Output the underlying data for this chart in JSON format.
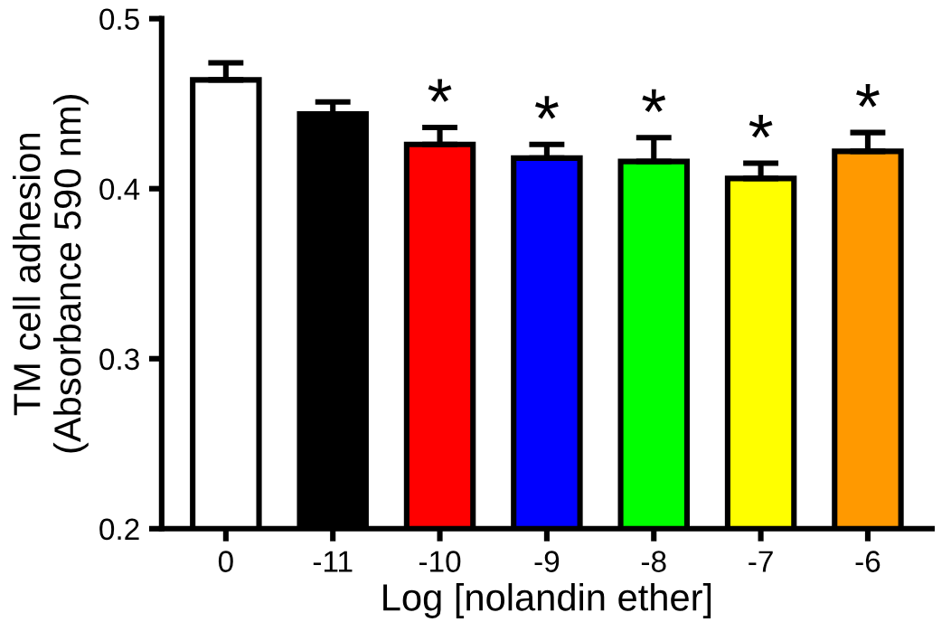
{
  "chart_data": {
    "type": "bar",
    "xlabel": "Log [nolandin ether]",
    "ylabel": "TM cell adhesion\n(Absorbance 590 nm)",
    "categories": [
      "0",
      "-11",
      "-10",
      "-9",
      "-8",
      "-7",
      "-6"
    ],
    "values": [
      0.464,
      0.444,
      0.426,
      0.418,
      0.416,
      0.406,
      0.422
    ],
    "colors": [
      "#ffffff",
      "#000000",
      "#ff0000",
      "#0000ff",
      "#00ff00",
      "#ffff00",
      "#ff9900"
    ],
    "errors": [
      [
        0.464,
        0.474
      ],
      [
        0.444,
        0.451
      ],
      [
        0.426,
        0.436
      ],
      [
        0.418,
        0.426
      ],
      [
        0.416,
        0.43
      ],
      [
        0.406,
        0.415
      ],
      [
        0.422,
        0.433
      ]
    ],
    "value_labels": [
      null,
      null,
      "*",
      "*",
      "*",
      "*",
      "*"
    ],
    "ylim": [
      0.2,
      0.5
    ],
    "yticks": [
      0.2,
      0.3,
      0.4,
      0.5
    ],
    "grid": false,
    "legend": false
  }
}
